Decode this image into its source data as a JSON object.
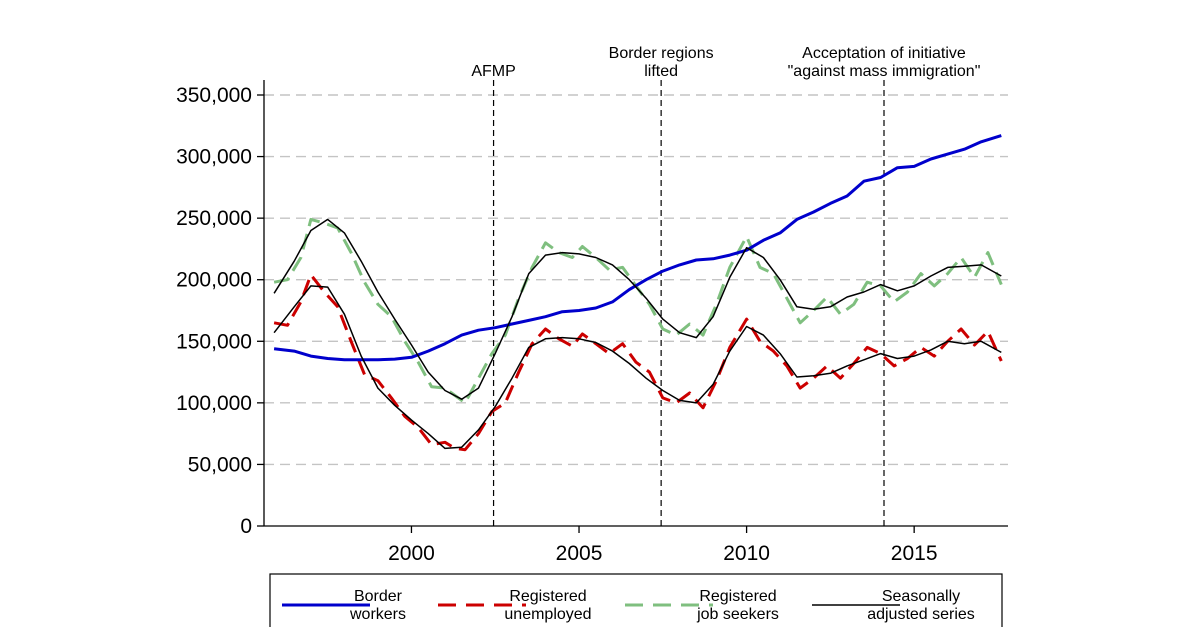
{
  "chart_data": {
    "type": "line",
    "title": "",
    "xlabel": "",
    "ylabel": "",
    "xlim": [
      1995.6,
      2017.8
    ],
    "ylim": [
      0,
      350000
    ],
    "x_ticks": [
      2000,
      2005,
      2010,
      2015
    ],
    "x_tick_labels": [
      "2000",
      "2005",
      "2010",
      "2015"
    ],
    "y_ticks": [
      0,
      50000,
      100000,
      150000,
      200000,
      250000,
      300000,
      350000
    ],
    "y_tick_labels": [
      "0",
      "50,000",
      "100,000",
      "150,000",
      "200,000",
      "250,000",
      "300,000",
      "350,000"
    ],
    "grid": "horizontal dashed",
    "legend_position": "bottom",
    "events": [
      {
        "x": 2002.45,
        "label_lines": [
          "AFMP"
        ]
      },
      {
        "x": 2007.45,
        "label_lines": [
          "Border regions",
          "lifted"
        ]
      },
      {
        "x": 2014.1,
        "label_lines": [
          "Acceptation of initiative",
          "\"against mass immigration\""
        ]
      }
    ],
    "series": [
      {
        "name_lines": [
          "Border",
          "workers"
        ],
        "color": "#0000cc",
        "style": "solid",
        "points": [
          [
            1995.9,
            144000
          ],
          [
            1996.5,
            142000
          ],
          [
            1997.0,
            138000
          ],
          [
            1997.5,
            136000
          ],
          [
            1998.0,
            135000
          ],
          [
            1998.5,
            135000
          ],
          [
            1999.0,
            135000
          ],
          [
            1999.5,
            135500
          ],
          [
            2000.0,
            137000
          ],
          [
            2000.5,
            142000
          ],
          [
            2001.0,
            148000
          ],
          [
            2001.5,
            155000
          ],
          [
            2002.0,
            159000
          ],
          [
            2002.5,
            161000
          ],
          [
            2003.0,
            164000
          ],
          [
            2003.5,
            167000
          ],
          [
            2004.0,
            170000
          ],
          [
            2004.5,
            174000
          ],
          [
            2005.0,
            175000
          ],
          [
            2005.5,
            177000
          ],
          [
            2006.0,
            182000
          ],
          [
            2006.5,
            192000
          ],
          [
            2007.0,
            200000
          ],
          [
            2007.5,
            207000
          ],
          [
            2008.0,
            212000
          ],
          [
            2008.5,
            216000
          ],
          [
            2009.0,
            217000
          ],
          [
            2009.5,
            220000
          ],
          [
            2010.0,
            224000
          ],
          [
            2010.5,
            232000
          ],
          [
            2011.0,
            238000
          ],
          [
            2011.5,
            249000
          ],
          [
            2012.0,
            255000
          ],
          [
            2012.5,
            262000
          ],
          [
            2013.0,
            268000
          ],
          [
            2013.5,
            280000
          ],
          [
            2014.0,
            283000
          ],
          [
            2014.5,
            291000
          ],
          [
            2015.0,
            292000
          ],
          [
            2015.5,
            298000
          ],
          [
            2016.0,
            302000
          ],
          [
            2016.5,
            306000
          ],
          [
            2017.0,
            312000
          ],
          [
            2017.6,
            317000
          ]
        ]
      },
      {
        "name_lines": [
          "Registered",
          "unemployed"
        ],
        "color": "#cc0000",
        "style": "dashed",
        "points": [
          [
            1995.9,
            165000
          ],
          [
            1996.3,
            163000
          ],
          [
            1996.7,
            182000
          ],
          [
            1997.0,
            204000
          ],
          [
            1997.4,
            190000
          ],
          [
            1997.8,
            178000
          ],
          [
            1998.2,
            150000
          ],
          [
            1998.6,
            123000
          ],
          [
            1999.0,
            118000
          ],
          [
            1999.4,
            104000
          ],
          [
            1999.8,
            89000
          ],
          [
            2000.2,
            80000
          ],
          [
            2000.6,
            66000
          ],
          [
            2001.0,
            68000
          ],
          [
            2001.3,
            63000
          ],
          [
            2001.6,
            62000
          ],
          [
            2002.0,
            75000
          ],
          [
            2002.4,
            93000
          ],
          [
            2002.8,
            100000
          ],
          [
            2003.2,
            125000
          ],
          [
            2003.6,
            148000
          ],
          [
            2004.0,
            160000
          ],
          [
            2004.4,
            152000
          ],
          [
            2004.8,
            146000
          ],
          [
            2005.1,
            156000
          ],
          [
            2005.5,
            148000
          ],
          [
            2005.9,
            140000
          ],
          [
            2006.3,
            148000
          ],
          [
            2006.7,
            133000
          ],
          [
            2007.1,
            125000
          ],
          [
            2007.5,
            104000
          ],
          [
            2007.9,
            100000
          ],
          [
            2008.3,
            108000
          ],
          [
            2008.7,
            96000
          ],
          [
            2009.1,
            118000
          ],
          [
            2009.5,
            145000
          ],
          [
            2010.0,
            168000
          ],
          [
            2010.4,
            150000
          ],
          [
            2010.8,
            142000
          ],
          [
            2011.2,
            130000
          ],
          [
            2011.6,
            112000
          ],
          [
            2012.0,
            120000
          ],
          [
            2012.4,
            130000
          ],
          [
            2012.8,
            120000
          ],
          [
            2013.2,
            132000
          ],
          [
            2013.6,
            145000
          ],
          [
            2014.0,
            140000
          ],
          [
            2014.4,
            130000
          ],
          [
            2014.8,
            136000
          ],
          [
            2015.2,
            145000
          ],
          [
            2015.6,
            138000
          ],
          [
            2016.0,
            150000
          ],
          [
            2016.4,
            160000
          ],
          [
            2016.8,
            147000
          ],
          [
            2017.2,
            158000
          ],
          [
            2017.6,
            134000
          ]
        ]
      },
      {
        "name_lines": [
          "Registered",
          "job seekers"
        ],
        "color": "#7fbf7f",
        "style": "dashed",
        "points": [
          [
            1995.9,
            198000
          ],
          [
            1996.3,
            200000
          ],
          [
            1996.7,
            218000
          ],
          [
            1997.0,
            249000
          ],
          [
            1997.4,
            246000
          ],
          [
            1997.8,
            242000
          ],
          [
            1998.2,
            222000
          ],
          [
            1998.6,
            198000
          ],
          [
            1999.0,
            180000
          ],
          [
            1999.4,
            170000
          ],
          [
            1999.8,
            150000
          ],
          [
            2000.2,
            133000
          ],
          [
            2000.6,
            113000
          ],
          [
            2001.0,
            112000
          ],
          [
            2001.3,
            106000
          ],
          [
            2001.6,
            100000
          ],
          [
            2002.0,
            120000
          ],
          [
            2002.4,
            140000
          ],
          [
            2002.8,
            155000
          ],
          [
            2003.2,
            185000
          ],
          [
            2003.6,
            210000
          ],
          [
            2004.0,
            230000
          ],
          [
            2004.4,
            222000
          ],
          [
            2004.8,
            218000
          ],
          [
            2005.1,
            227000
          ],
          [
            2005.5,
            218000
          ],
          [
            2005.9,
            208000
          ],
          [
            2006.3,
            210000
          ],
          [
            2006.7,
            195000
          ],
          [
            2007.1,
            180000
          ],
          [
            2007.5,
            160000
          ],
          [
            2007.9,
            155000
          ],
          [
            2008.3,
            164000
          ],
          [
            2008.7,
            155000
          ],
          [
            2009.1,
            180000
          ],
          [
            2009.5,
            210000
          ],
          [
            2010.0,
            235000
          ],
          [
            2010.4,
            210000
          ],
          [
            2010.8,
            205000
          ],
          [
            2011.2,
            185000
          ],
          [
            2011.6,
            165000
          ],
          [
            2012.0,
            175000
          ],
          [
            2012.4,
            186000
          ],
          [
            2012.8,
            172000
          ],
          [
            2013.2,
            180000
          ],
          [
            2013.6,
            198000
          ],
          [
            2014.0,
            195000
          ],
          [
            2014.4,
            182000
          ],
          [
            2014.8,
            190000
          ],
          [
            2015.2,
            205000
          ],
          [
            2015.6,
            195000
          ],
          [
            2016.0,
            205000
          ],
          [
            2016.4,
            218000
          ],
          [
            2016.8,
            202000
          ],
          [
            2017.2,
            222000
          ],
          [
            2017.6,
            196000
          ]
        ]
      },
      {
        "name_lines": [
          "Seasonally",
          "adjusted series"
        ],
        "color": "#000000",
        "style": "solid-thin",
        "points": [
          [
            1995.9,
            189000
          ],
          [
            1996.5,
            215000
          ],
          [
            1997.0,
            240000
          ],
          [
            1997.5,
            249000
          ],
          [
            1998.0,
            238000
          ],
          [
            1998.5,
            215000
          ],
          [
            1999.0,
            190000
          ],
          [
            1999.5,
            168000
          ],
          [
            2000.0,
            147000
          ],
          [
            2000.5,
            125000
          ],
          [
            2001.0,
            110000
          ],
          [
            2001.5,
            103000
          ],
          [
            2002.0,
            112000
          ],
          [
            2002.5,
            140000
          ],
          [
            2003.0,
            170000
          ],
          [
            2003.5,
            205000
          ],
          [
            2004.0,
            220000
          ],
          [
            2004.5,
            222000
          ],
          [
            2005.0,
            221000
          ],
          [
            2005.5,
            218000
          ],
          [
            2006.0,
            212000
          ],
          [
            2006.5,
            200000
          ],
          [
            2007.0,
            185000
          ],
          [
            2007.5,
            168000
          ],
          [
            2008.0,
            157000
          ],
          [
            2008.5,
            153000
          ],
          [
            2009.0,
            170000
          ],
          [
            2009.5,
            202000
          ],
          [
            2010.0,
            226000
          ],
          [
            2010.5,
            218000
          ],
          [
            2011.0,
            200000
          ],
          [
            2011.5,
            178000
          ],
          [
            2012.0,
            176000
          ],
          [
            2012.5,
            178000
          ],
          [
            2013.0,
            186000
          ],
          [
            2013.5,
            190000
          ],
          [
            2014.0,
            196000
          ],
          [
            2014.5,
            191000
          ],
          [
            2015.0,
            195000
          ],
          [
            2015.5,
            203000
          ],
          [
            2016.0,
            210000
          ],
          [
            2016.5,
            211000
          ],
          [
            2017.0,
            212000
          ],
          [
            2017.6,
            203000
          ]
        ]
      },
      {
        "name_lines": [],
        "color": "#000000",
        "style": "solid-thin",
        "points": [
          [
            1995.9,
            157000
          ],
          [
            1996.5,
            178000
          ],
          [
            1997.0,
            195000
          ],
          [
            1997.5,
            194000
          ],
          [
            1998.0,
            172000
          ],
          [
            1998.5,
            138000
          ],
          [
            1999.0,
            112000
          ],
          [
            1999.5,
            98000
          ],
          [
            2000.0,
            86000
          ],
          [
            2000.5,
            75000
          ],
          [
            2001.0,
            63000
          ],
          [
            2001.5,
            64000
          ],
          [
            2002.0,
            78000
          ],
          [
            2002.5,
            97000
          ],
          [
            2003.0,
            120000
          ],
          [
            2003.5,
            145000
          ],
          [
            2004.0,
            152000
          ],
          [
            2004.5,
            153000
          ],
          [
            2005.0,
            152000
          ],
          [
            2005.5,
            149000
          ],
          [
            2006.0,
            142000
          ],
          [
            2006.5,
            132000
          ],
          [
            2007.0,
            120000
          ],
          [
            2007.5,
            110000
          ],
          [
            2008.0,
            102000
          ],
          [
            2008.5,
            100000
          ],
          [
            2009.0,
            115000
          ],
          [
            2009.5,
            142000
          ],
          [
            2010.0,
            162000
          ],
          [
            2010.5,
            155000
          ],
          [
            2011.0,
            140000
          ],
          [
            2011.5,
            121000
          ],
          [
            2012.0,
            122000
          ],
          [
            2012.5,
            124000
          ],
          [
            2013.0,
            130000
          ],
          [
            2013.5,
            135000
          ],
          [
            2014.0,
            140000
          ],
          [
            2014.5,
            136000
          ],
          [
            2015.0,
            138000
          ],
          [
            2015.5,
            143000
          ],
          [
            2016.0,
            150000
          ],
          [
            2016.5,
            148000
          ],
          [
            2017.0,
            150000
          ],
          [
            2017.6,
            141000
          ]
        ]
      }
    ]
  }
}
